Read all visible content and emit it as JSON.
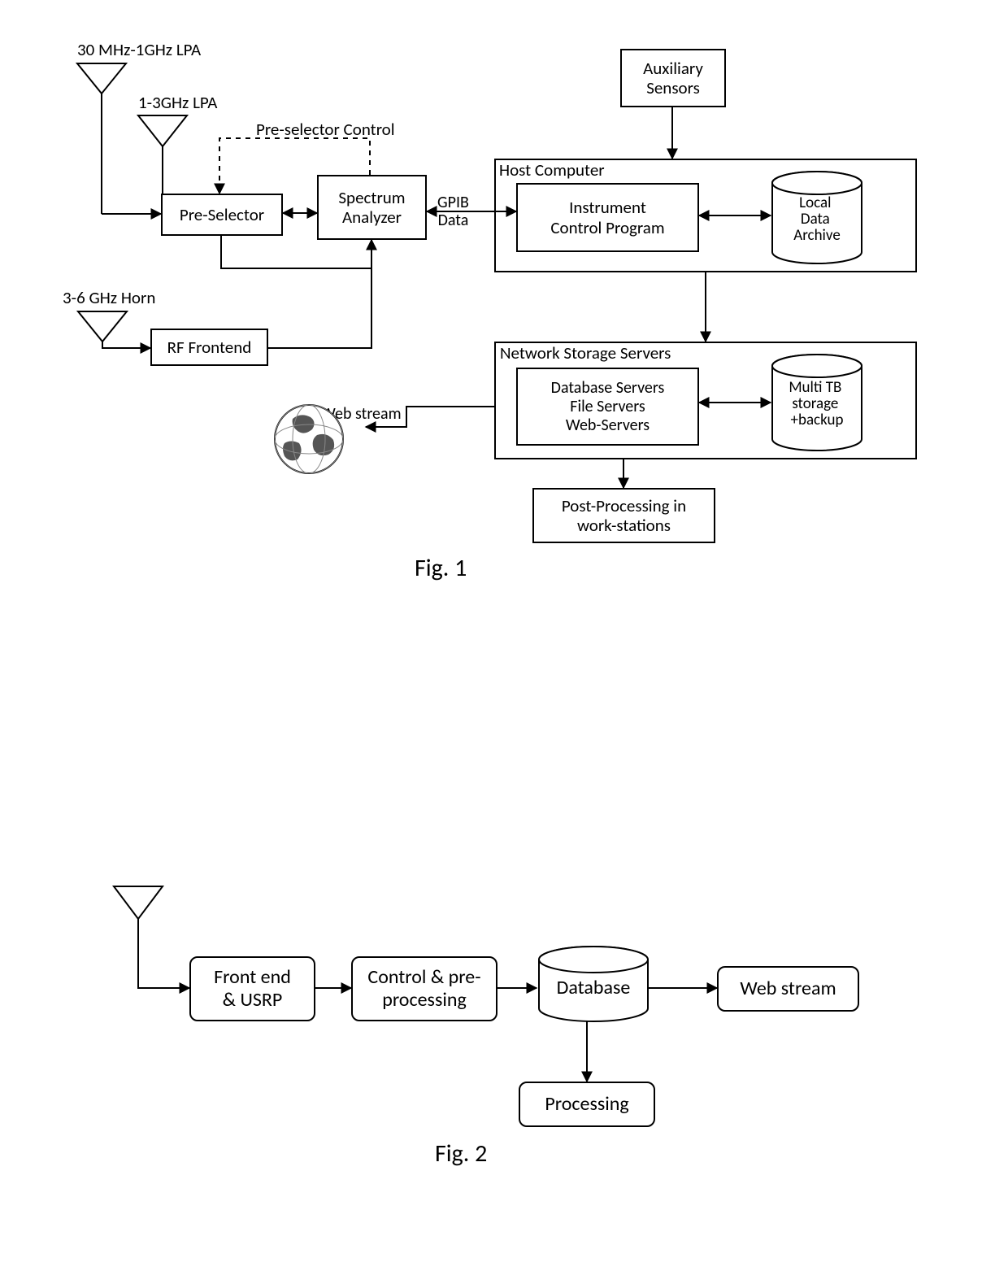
{
  "colors": {
    "stroke": "#000000",
    "bg": "#ffffff",
    "text": "#000000"
  },
  "stroke_width": 2,
  "font_family": "Calibri, Segoe UI, Arial, sans-serif",
  "fig1": {
    "caption": "Fig. 1",
    "caption_fontsize": 30,
    "labels": {
      "antenna1": "30 MHz-1GHz LPA",
      "antenna2": "1-3GHz LPA",
      "antenna3": "3-6 GHz Horn",
      "preselector_control": "Pre-selector Control",
      "gpib_data": "GPIB\nData",
      "web_stream": "Web stream",
      "host_computer": "Host Computer",
      "network_storage": "Network Storage Servers"
    },
    "boxes": {
      "auxiliary_sensors": "Auxiliary\nSensors",
      "pre_selector": "Pre-Selector",
      "spectrum_analyzer": "Spectrum\nAnalyzer",
      "instrument_control": "Instrument\nControl Program",
      "local_data_archive": "Local\nData\nArchive",
      "rf_frontend": "RF Frontend",
      "db_servers": "Database Servers\nFile Servers\nWeb-Servers",
      "multi_tb": "Multi TB\nstorage\n+backup",
      "post_processing": "Post-Processing in\nwork-stations"
    },
    "layout_fontsize": 21,
    "label_fontsize": 21
  },
  "fig2": {
    "caption": "Fig. 2",
    "caption_fontsize": 30,
    "boxes": {
      "front_end": "Front end\n& USRP",
      "control_pre": "Control & pre-\nprocessing",
      "database": "Database",
      "web_stream": "Web stream",
      "processing": "Processing"
    },
    "layout_fontsize": 24
  }
}
